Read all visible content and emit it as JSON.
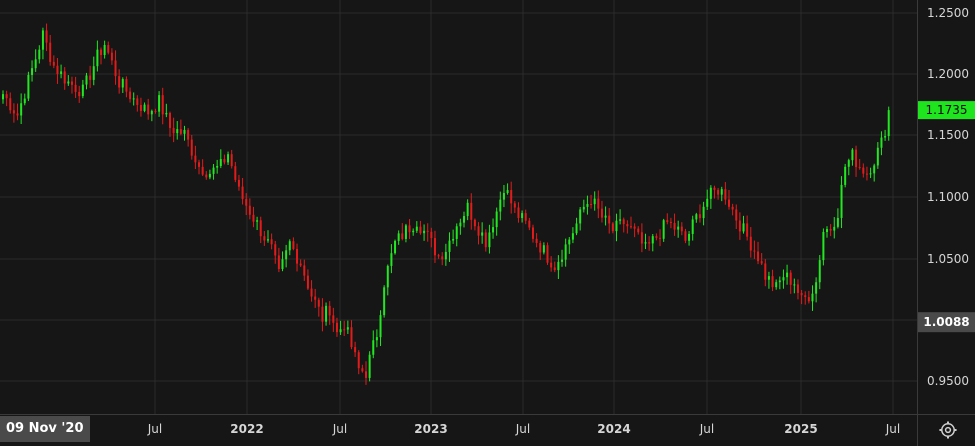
{
  "crosshair_date": "09 Nov '20",
  "colors": {
    "background": "#161616",
    "grid": "#2b2b2b",
    "up": "#22e822",
    "down": "#e41b1b",
    "axis_text": "#d6d6d6",
    "last_price_bg": "#1fe51f",
    "crosshair_bg": "#4a4a4a"
  },
  "chart_data": {
    "type": "candlestick",
    "timeframe": "weekly",
    "y_axis": {
      "side": "right",
      "ticks": [
        "1.2500",
        "1.2000",
        "1.1500",
        "1.1000",
        "1.0500",
        "1.0000",
        "0.9500"
      ],
      "ylim": [
        0.9375,
        1.259
      ]
    },
    "x_axis": {
      "ticks": [
        {
          "label": "Jul",
          "bold": false
        },
        {
          "label": "2022",
          "bold": true
        },
        {
          "label": "Jul",
          "bold": false
        },
        {
          "label": "2023",
          "bold": true
        },
        {
          "label": "Jul",
          "bold": false
        },
        {
          "label": "2024",
          "bold": true
        },
        {
          "label": "Jul",
          "bold": false
        },
        {
          "label": "2025",
          "bold": true
        },
        {
          "label": "Jul",
          "bold": false
        }
      ]
    },
    "grid": true,
    "last_price": "1.1735",
    "crosshair_price": "1.0088",
    "anchors": [
      [
        0,
        1.186
      ],
      [
        4,
        1.17
      ],
      [
        8,
        1.205
      ],
      [
        11,
        1.232
      ],
      [
        14,
        1.208
      ],
      [
        18,
        1.195
      ],
      [
        22,
        1.188
      ],
      [
        26,
        1.215
      ],
      [
        28,
        1.225
      ],
      [
        32,
        1.195
      ],
      [
        36,
        1.182
      ],
      [
        40,
        1.172
      ],
      [
        43,
        1.18
      ],
      [
        46,
        1.16
      ],
      [
        50,
        1.155
      ],
      [
        54,
        1.13
      ],
      [
        57,
        1.125
      ],
      [
        60,
        1.13
      ],
      [
        62,
        1.14
      ],
      [
        65,
        1.11
      ],
      [
        68,
        1.095
      ],
      [
        71,
        1.08
      ],
      [
        74,
        1.065
      ],
      [
        76,
        1.045
      ],
      [
        79,
        1.07
      ],
      [
        82,
        1.055
      ],
      [
        85,
        1.03
      ],
      [
        88,
        1.012
      ],
      [
        90,
        1.02
      ],
      [
        92,
        1.0
      ],
      [
        94,
        1.008
      ],
      [
        96,
        0.99
      ],
      [
        98,
        0.972
      ],
      [
        100,
        0.97
      ],
      [
        103,
        1.0
      ],
      [
        105,
        1.04
      ],
      [
        108,
        1.07
      ],
      [
        111,
        1.08
      ],
      [
        114,
        1.088
      ],
      [
        117,
        1.075
      ],
      [
        120,
        1.06
      ],
      [
        122,
        1.066
      ],
      [
        125,
        1.085
      ],
      [
        128,
        1.098
      ],
      [
        131,
        1.082
      ],
      [
        133,
        1.072
      ],
      [
        136,
        1.095
      ],
      [
        138,
        1.115
      ],
      [
        141,
        1.095
      ],
      [
        144,
        1.085
      ],
      [
        147,
        1.072
      ],
      [
        150,
        1.06
      ],
      [
        152,
        1.053
      ],
      [
        155,
        1.068
      ],
      [
        158,
        1.085
      ],
      [
        160,
        1.098
      ],
      [
        162,
        1.105
      ],
      [
        165,
        1.09
      ],
      [
        168,
        1.08
      ],
      [
        171,
        1.086
      ],
      [
        174,
        1.078
      ],
      [
        177,
        1.065
      ],
      [
        180,
        1.075
      ],
      [
        183,
        1.086
      ],
      [
        186,
        1.08
      ],
      [
        188,
        1.072
      ],
      [
        191,
        1.09
      ],
      [
        194,
        1.105
      ],
      [
        197,
        1.112
      ],
      [
        199,
        1.108
      ],
      [
        202,
        1.09
      ],
      [
        205,
        1.075
      ],
      [
        208,
        1.06
      ],
      [
        210,
        1.045
      ],
      [
        213,
        1.035
      ],
      [
        215,
        1.045
      ],
      [
        218,
        1.04
      ],
      [
        220,
        1.025
      ],
      [
        222,
        1.03
      ],
      [
        224,
        1.04
      ],
      [
        226,
        1.08
      ],
      [
        228,
        1.082
      ],
      [
        230,
        1.095
      ],
      [
        232,
        1.13
      ],
      [
        234,
        1.138
      ],
      [
        236,
        1.13
      ],
      [
        238,
        1.125
      ],
      [
        240,
        1.135
      ],
      [
        242,
        1.148
      ],
      [
        244,
        1.17
      ]
    ]
  }
}
